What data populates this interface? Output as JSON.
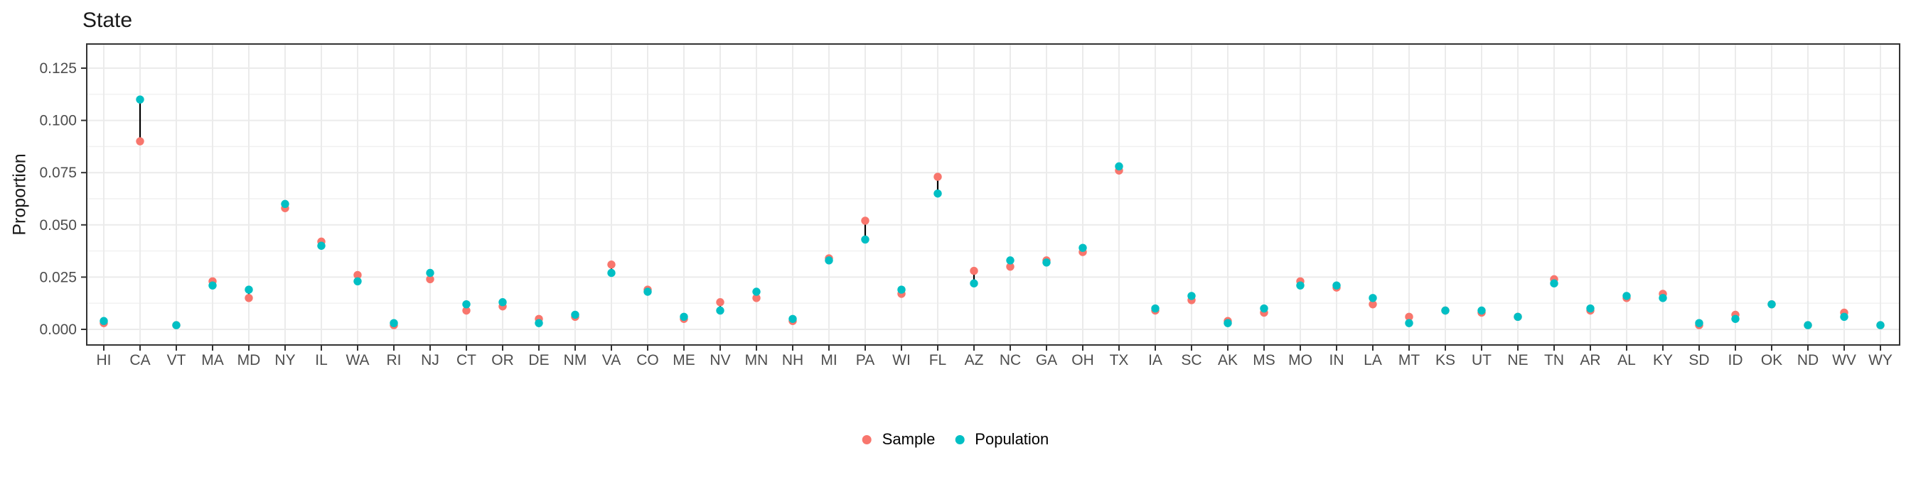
{
  "chart_data": {
    "type": "scatter",
    "title": "State",
    "xlabel": "",
    "ylabel": "Proportion",
    "grid": "on",
    "legend_position": "bottom",
    "ylim": [
      -0.0075,
      0.1365
    ],
    "y_ticks": [
      "0.000",
      "0.025",
      "0.050",
      "0.075",
      "0.100",
      "0.125"
    ],
    "categories": [
      "HI",
      "CA",
      "VT",
      "MA",
      "MD",
      "NY",
      "IL",
      "WA",
      "RI",
      "NJ",
      "CT",
      "OR",
      "DE",
      "NM",
      "VA",
      "CO",
      "ME",
      "NV",
      "MN",
      "NH",
      "MI",
      "PA",
      "WI",
      "FL",
      "AZ",
      "NC",
      "GA",
      "OH",
      "TX",
      "IA",
      "SC",
      "AK",
      "MS",
      "MO",
      "IN",
      "LA",
      "MT",
      "KS",
      "UT",
      "NE",
      "TN",
      "AR",
      "AL",
      "KY",
      "SD",
      "ID",
      "OK",
      "ND",
      "WV",
      "WY"
    ],
    "series": [
      {
        "name": "Sample",
        "color": "#F8766D",
        "values": [
          0.003,
          0.09,
          0.002,
          0.023,
          0.015,
          0.058,
          0.042,
          0.026,
          0.002,
          0.024,
          0.009,
          0.011,
          0.005,
          0.006,
          0.031,
          0.019,
          0.005,
          0.013,
          0.015,
          0.004,
          0.034,
          0.052,
          0.017,
          0.073,
          0.028,
          0.03,
          0.033,
          0.037,
          0.076,
          0.009,
          0.014,
          0.004,
          0.008,
          0.023,
          0.02,
          0.012,
          0.006,
          0.009,
          0.008,
          0.006,
          0.024,
          0.009,
          0.015,
          0.017,
          0.002,
          0.007,
          0.012,
          0.002,
          0.008,
          0.002
        ]
      },
      {
        "name": "Population",
        "color": "#00BFC4",
        "values": [
          0.004,
          0.11,
          0.002,
          0.021,
          0.019,
          0.06,
          0.04,
          0.023,
          0.003,
          0.027,
          0.012,
          0.013,
          0.003,
          0.007,
          0.027,
          0.018,
          0.006,
          0.009,
          0.018,
          0.005,
          0.033,
          0.043,
          0.019,
          0.065,
          0.022,
          0.033,
          0.032,
          0.039,
          0.078,
          0.01,
          0.016,
          0.003,
          0.01,
          0.021,
          0.021,
          0.015,
          0.003,
          0.009,
          0.009,
          0.006,
          0.022,
          0.01,
          0.016,
          0.015,
          0.003,
          0.005,
          0.012,
          0.002,
          0.006,
          0.002
        ]
      }
    ],
    "connector_color": "#000000",
    "colors": {
      "grid_major": "#EBEBEB",
      "grid_minor": "#F0F0F0",
      "panel_border": "#333333",
      "tick_mark": "#333333",
      "tick_label": "#4D4D4D",
      "text": "#1a1a1a"
    }
  },
  "legend": {
    "items": [
      {
        "label": "Sample",
        "color": "#F8766D"
      },
      {
        "label": "Population",
        "color": "#00BFC4"
      }
    ]
  }
}
